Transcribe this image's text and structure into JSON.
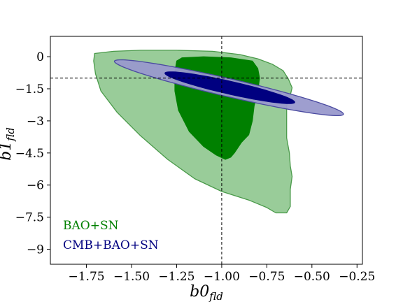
{
  "chart_data": {
    "type": "contour",
    "title": "",
    "xlabel": {
      "base": "b0",
      "sub": "fld"
    },
    "ylabel": {
      "base": "b1",
      "sub": "fld"
    },
    "xlim": [
      -1.95,
      -0.22
    ],
    "ylim": [
      -9.7,
      0.95
    ],
    "xticks": [
      -1.75,
      -1.5,
      -1.25,
      -1.0,
      -0.75,
      -0.5,
      -0.25
    ],
    "xtick_labels": [
      "−1.75",
      "−1.50",
      "−1.25",
      "−1.00",
      "−0.75",
      "−0.50",
      "−0.25"
    ],
    "yticks": [
      0,
      -1.5,
      -3,
      -4.5,
      -6,
      -7.5,
      -9
    ],
    "ytick_labels": [
      "0",
      "−1.5",
      "−3",
      "−4.5",
      "−6",
      "−7.5",
      "−9"
    ],
    "reference_lines": {
      "x": -1.0,
      "y": -1.0
    },
    "grid": false,
    "legend_position": "bottom-left",
    "colors": {
      "bao_sn_outer": "#99cc99",
      "bao_sn_inner": "#008000",
      "bao_sn_edge": "#4a9a4a",
      "cmb_outer": "#9999cc",
      "cmb_inner": "#000080",
      "cmb_edge": "#4a4aa0"
    },
    "series": [
      {
        "name": "BAO+SN",
        "color": "#008000",
        "contours": [
          {
            "level": "95%",
            "points": [
              [
                -1.705,
                0.15
              ],
              [
                -1.6,
                0.25
              ],
              [
                -1.45,
                0.3
              ],
              [
                -1.25,
                0.3
              ],
              [
                -1.05,
                0.25
              ],
              [
                -0.9,
                0.1
              ],
              [
                -0.8,
                -0.1
              ],
              [
                -0.72,
                -0.35
              ],
              [
                -0.66,
                -0.65
              ],
              [
                -0.63,
                -1.05
              ],
              [
                -0.61,
                -1.45
              ],
              [
                -0.62,
                -1.8
              ],
              [
                -0.64,
                -2.3
              ],
              [
                -0.64,
                -3.0
              ],
              [
                -0.64,
                -3.8
              ],
              [
                -0.625,
                -4.5
              ],
              [
                -0.62,
                -5.1
              ],
              [
                -0.61,
                -5.6
              ],
              [
                -0.62,
                -6.2
              ],
              [
                -0.62,
                -7.0
              ],
              [
                -0.64,
                -7.3
              ],
              [
                -0.7,
                -7.3
              ],
              [
                -0.75,
                -7.05
              ],
              [
                -0.85,
                -6.7
              ],
              [
                -1.0,
                -6.3
              ],
              [
                -1.15,
                -5.7
              ],
              [
                -1.3,
                -4.8
              ],
              [
                -1.45,
                -3.7
              ],
              [
                -1.58,
                -2.6
              ],
              [
                -1.67,
                -1.6
              ],
              [
                -1.7,
                -0.8
              ],
              [
                -1.71,
                -0.2
              ]
            ]
          },
          {
            "level": "68%",
            "points": [
              [
                -1.22,
                -0.05
              ],
              [
                -1.1,
                0.0
              ],
              [
                -0.95,
                -0.05
              ],
              [
                -0.83,
                -0.2
              ],
              [
                -0.8,
                -0.55
              ],
              [
                -0.79,
                -1.0
              ],
              [
                -0.8,
                -1.6
              ],
              [
                -0.82,
                -2.3
              ],
              [
                -0.83,
                -3.0
              ],
              [
                -0.85,
                -3.65
              ],
              [
                -0.89,
                -4.0
              ],
              [
                -0.93,
                -4.5
              ],
              [
                -0.95,
                -4.7
              ],
              [
                -0.98,
                -4.8
              ],
              [
                -1.03,
                -4.6
              ],
              [
                -1.1,
                -4.2
              ],
              [
                -1.18,
                -3.5
              ],
              [
                -1.24,
                -2.5
              ],
              [
                -1.26,
                -1.6
              ],
              [
                -1.26,
                -0.7
              ],
              [
                -1.25,
                -0.2
              ]
            ]
          }
        ]
      },
      {
        "name": "CMB+BAO+SN",
        "color": "#000080",
        "contours": [
          {
            "level": "95%",
            "ellipse": {
              "center": [
                -0.96,
                -1.45
              ],
              "semi_major": 0.635,
              "semi_minor": 0.43,
              "slope": -1.95
            }
          },
          {
            "level": "68%",
            "ellipse": {
              "center": [
                -0.955,
                -1.45
              ],
              "semi_major": 0.36,
              "semi_minor": 0.22,
              "slope": -1.9
            }
          }
        ]
      }
    ]
  }
}
